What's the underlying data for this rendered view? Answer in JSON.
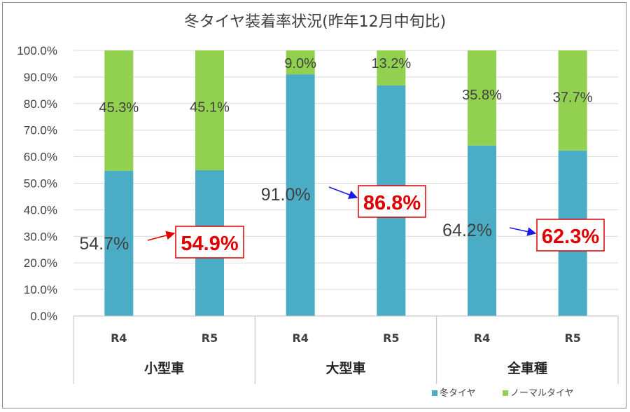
{
  "chart_data": {
    "type": "bar",
    "stacked": true,
    "title": "冬タイヤ装着率状況(昨年12月中旬比)",
    "groups": [
      {
        "name": "小型車",
        "categories": [
          "R4",
          "R5"
        ]
      },
      {
        "name": "大型車",
        "categories": [
          "R4",
          "R5"
        ]
      },
      {
        "name": "全車種",
        "categories": [
          "R4",
          "R5"
        ]
      }
    ],
    "series": [
      {
        "name": "冬タイヤ",
        "color": "#4bacc6",
        "values": [
          54.7,
          54.9,
          91.0,
          86.8,
          64.2,
          62.3
        ]
      },
      {
        "name": "ノーマルタイヤ",
        "color": "#92d050",
        "values": [
          45.3,
          45.1,
          9.0,
          13.2,
          35.8,
          37.7
        ]
      }
    ],
    "series_labels": [
      [
        "54.7%",
        "54.9%",
        "91.0%",
        "86.8%",
        "64.2%",
        "62.3%"
      ],
      [
        "45.3%",
        "45.1%",
        "9.0%",
        "13.2%",
        "35.8%",
        "37.7%"
      ]
    ],
    "yticks": [
      "0.0%",
      "10.0%",
      "20.0%",
      "30.0%",
      "40.0%",
      "50.0%",
      "60.0%",
      "70.0%",
      "80.0%",
      "90.0%",
      "100.0%"
    ],
    "ylim": [
      0,
      100
    ],
    "grid": true,
    "legend_position": "bottom-right",
    "annotations": {
      "highlighted_values": [
        "54.9%",
        "86.8%",
        "62.3%"
      ],
      "arrow_colors": [
        "#e00000",
        "#1a1ae6",
        "#1a1ae6"
      ]
    }
  }
}
